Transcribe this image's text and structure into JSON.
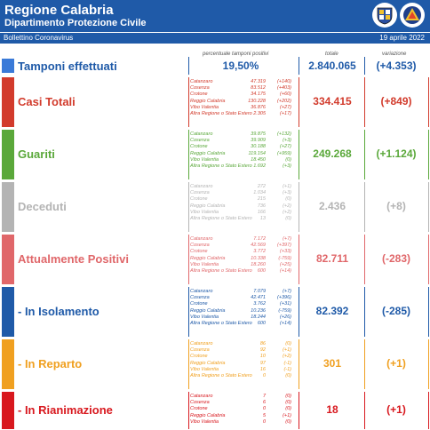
{
  "header": {
    "title": "Regione Calabria",
    "subtitle": "Dipartimento Protezione Civile",
    "bulletin": "Bollettino Coronavirus",
    "date": "19 aprile 2022"
  },
  "columns": {
    "percent": "percentuale tamponi positivi",
    "total": "totale",
    "variation": "variazione"
  },
  "tamponi": {
    "label": "Tamponi effettuati",
    "percent": "19,50%",
    "total": "2.840.065",
    "variation": "(+4.353)",
    "color": "#3a7ad8"
  },
  "sections": [
    {
      "label": "Casi Totali",
      "color": "#d23b2c",
      "total": "334.415",
      "variation": "(+849)",
      "items": [
        {
          "name": "Catanzaro",
          "value": "47.319",
          "delta": "(+140)"
        },
        {
          "name": "Cosenza",
          "value": "83.512",
          "delta": "(+403)"
        },
        {
          "name": "Crotone",
          "value": "34.175",
          "delta": "(+60)"
        },
        {
          "name": "Reggio Calabria",
          "value": "130.228",
          "delta": "(+202)"
        },
        {
          "name": "Vibo Valentia",
          "value": "36.876",
          "delta": "(+27)"
        },
        {
          "name": "Altra Regione o Stato Estero",
          "value": "2.305",
          "delta": "(+17)"
        }
      ]
    },
    {
      "label": "Guariti",
      "color": "#5aa83a",
      "total": "249.268",
      "variation": "(+1.124)",
      "items": [
        {
          "name": "Catanzaro",
          "value": "39.875",
          "delta": "(+132)"
        },
        {
          "name": "Cosenza",
          "value": "39.909",
          "delta": "(+3)"
        },
        {
          "name": "Crotone",
          "value": "30.188",
          "delta": "(+27)"
        },
        {
          "name": "Reggio Calabria",
          "value": "119.154",
          "delta": "(+959)"
        },
        {
          "name": "Vibo Valentia",
          "value": "18.450",
          "delta": "(0)"
        },
        {
          "name": "Altra Regione o Stato Estero",
          "value": "1.692",
          "delta": "(+3)"
        }
      ]
    },
    {
      "label": "Deceduti",
      "color": "#b4b4b4",
      "total": "2.436",
      "variation": "(+8)",
      "items": [
        {
          "name": "Catanzaro",
          "value": "272",
          "delta": "(+1)"
        },
        {
          "name": "Cosenza",
          "value": "1.034",
          "delta": "(+3)"
        },
        {
          "name": "Crotone",
          "value": "215",
          "delta": "(0)"
        },
        {
          "name": "Reggio Calabria",
          "value": "736",
          "delta": "(+2)"
        },
        {
          "name": "Vibo Valentia",
          "value": "166",
          "delta": "(+2)"
        },
        {
          "name": "Altra Regione o Stato Estero",
          "value": "13",
          "delta": "(0)"
        }
      ]
    },
    {
      "label": "Attualmente Positivi",
      "color": "#e0676a",
      "total": "82.711",
      "variation": "(-283)",
      "items": [
        {
          "name": "Catanzaro",
          "value": "7.172",
          "delta": "(+7)"
        },
        {
          "name": "Cosenza",
          "value": "42.569",
          "delta": "(+397)"
        },
        {
          "name": "Crotone",
          "value": "3.772",
          "delta": "(+33)"
        },
        {
          "name": "Reggio Calabria",
          "value": "10.338",
          "delta": "(-759)"
        },
        {
          "name": "Vibo Valentia",
          "value": "18.260",
          "delta": "(+25)"
        },
        {
          "name": "Altra Regione o Stato Estero",
          "value": "600",
          "delta": "(+14)"
        }
      ]
    },
    {
      "label": "- In Isolamento",
      "color": "#1f5aa8",
      "total": "82.392",
      "variation": "(-285)",
      "items": [
        {
          "name": "Catanzaro",
          "value": "7.079",
          "delta": "(+7)"
        },
        {
          "name": "Cosenza",
          "value": "42.471",
          "delta": "(+396)"
        },
        {
          "name": "Crotone",
          "value": "3.762",
          "delta": "(+31)"
        },
        {
          "name": "Reggio Calabria",
          "value": "10.236",
          "delta": "(-759)"
        },
        {
          "name": "Vibo Valentia",
          "value": "18.244",
          "delta": "(+26)"
        },
        {
          "name": "Altra Regione o Stato Estero",
          "value": "600",
          "delta": "(+14)"
        }
      ]
    },
    {
      "label": "- In Reparto",
      "color": "#f0a020",
      "total": "301",
      "variation": "(+1)",
      "items": [
        {
          "name": "Catanzaro",
          "value": "86",
          "delta": "(0)"
        },
        {
          "name": "Cosenza",
          "value": "92",
          "delta": "(+1)"
        },
        {
          "name": "Crotone",
          "value": "10",
          "delta": "(+2)"
        },
        {
          "name": "Reggio Calabria",
          "value": "97",
          "delta": "(-1)"
        },
        {
          "name": "Vibo Valentia",
          "value": "16",
          "delta": "(-1)"
        },
        {
          "name": "Altra Regione o Stato Estero",
          "value": "0",
          "delta": "(0)"
        }
      ]
    },
    {
      "label": "- In Rianimazione",
      "color": "#d8181e",
      "total": "18",
      "variation": "(+1)",
      "items": [
        {
          "name": "Catanzaro",
          "value": "7",
          "delta": "(0)"
        },
        {
          "name": "Cosenza",
          "value": "6",
          "delta": "(0)"
        },
        {
          "name": "Crotone",
          "value": "0",
          "delta": "(0)"
        },
        {
          "name": "Reggio Calabria",
          "value": "5",
          "delta": "(+1)"
        },
        {
          "name": "Vibo Valentia",
          "value": "0",
          "delta": "(0)"
        }
      ]
    }
  ]
}
